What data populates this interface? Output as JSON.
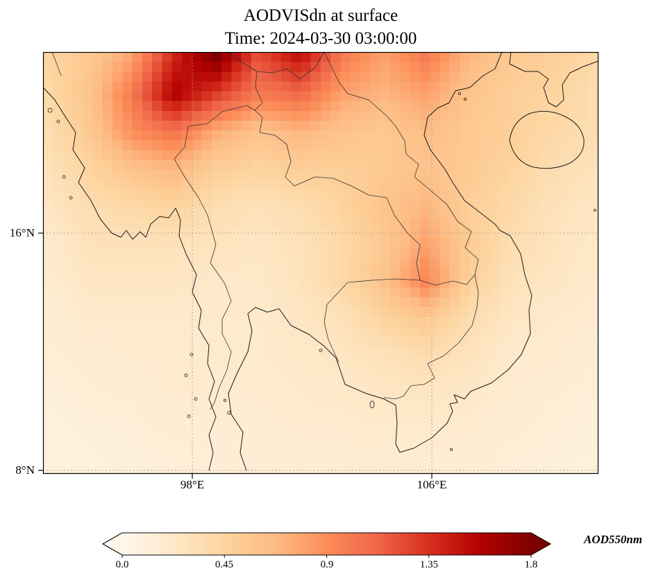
{
  "title": {
    "line1": "AODVISdn at surface",
    "line2": "Time: 2024-03-30 03:00:00"
  },
  "axes": {
    "x_ticks": [
      {
        "label": "98°E",
        "lon": 98
      },
      {
        "label": "106°E",
        "lon": 106
      }
    ],
    "y_ticks": [
      {
        "label": "16°N",
        "lat": 16
      },
      {
        "label": "8°N",
        "lat": 8
      }
    ]
  },
  "colorbar": {
    "label": "AOD550nm",
    "tick_labels": [
      "0.0",
      "0.45",
      "0.9",
      "1.35",
      "1.8"
    ],
    "tick_values": [
      0.0,
      0.45,
      0.9,
      1.35,
      1.8
    ],
    "vmin": 0.0,
    "vmax": 1.8,
    "extend": "both",
    "colormap": "OrRd",
    "colormap_stops": [
      "#fff7ec",
      "#fee8c8",
      "#fdd49e",
      "#fdbb84",
      "#fc8d59",
      "#ef6548",
      "#d7301f",
      "#b30000",
      "#7f0000"
    ]
  },
  "chart_data": {
    "type": "heatmap",
    "title": "AODVISdn at surface",
    "subtitle": "Time: 2024-03-30 03:00:00",
    "variable": "AOD550nm",
    "time": "2024-03-30 03:00:00",
    "lon_min": 93.0,
    "lon_max": 111.5,
    "lat_min": 7.9,
    "lat_max": 22.1,
    "gridline_lons": [
      98,
      106
    ],
    "gridline_lats": [
      16,
      8
    ],
    "vmin": 0.0,
    "vmax": 1.8,
    "grid_lon": [
      93.5,
      94.8,
      96.2,
      97.5,
      98.9,
      100.2,
      101.6,
      102.9,
      104.3,
      105.6,
      107.0,
      108.3,
      109.7,
      111.0
    ],
    "grid_lat": [
      21.6,
      20.4,
      19.2,
      18.0,
      16.8,
      15.5,
      14.3,
      13.1,
      11.9,
      10.7,
      9.4,
      8.2
    ],
    "values": [
      [
        0.45,
        0.55,
        0.8,
        1.4,
        1.8,
        1.2,
        1.5,
        1.0,
        0.8,
        1.0,
        0.7,
        0.55,
        0.5,
        0.4
      ],
      [
        0.4,
        0.6,
        1.0,
        1.6,
        1.3,
        1.0,
        1.1,
        0.8,
        0.7,
        0.8,
        0.6,
        0.5,
        0.45,
        0.35
      ],
      [
        0.35,
        0.55,
        0.9,
        1.05,
        0.75,
        0.6,
        0.7,
        0.6,
        0.55,
        0.65,
        0.55,
        0.5,
        0.4,
        0.35
      ],
      [
        0.3,
        0.45,
        0.6,
        0.68,
        0.5,
        0.45,
        0.5,
        0.5,
        0.55,
        0.6,
        0.55,
        0.45,
        0.35,
        0.3
      ],
      [
        0.25,
        0.35,
        0.4,
        0.45,
        0.35,
        0.3,
        0.35,
        0.45,
        0.6,
        0.7,
        0.5,
        0.4,
        0.3,
        0.25
      ],
      [
        0.2,
        0.3,
        0.3,
        0.3,
        0.28,
        0.25,
        0.3,
        0.4,
        0.55,
        0.8,
        0.55,
        0.35,
        0.28,
        0.22
      ],
      [
        0.18,
        0.25,
        0.25,
        0.25,
        0.22,
        0.22,
        0.28,
        0.4,
        0.6,
        0.95,
        0.5,
        0.3,
        0.25,
        0.2
      ],
      [
        0.15,
        0.2,
        0.2,
        0.2,
        0.2,
        0.2,
        0.25,
        0.3,
        0.45,
        0.55,
        0.35,
        0.25,
        0.2,
        0.18
      ],
      [
        0.14,
        0.16,
        0.18,
        0.2,
        0.2,
        0.2,
        0.22,
        0.25,
        0.3,
        0.35,
        0.28,
        0.2,
        0.18,
        0.15
      ],
      [
        0.12,
        0.14,
        0.15,
        0.18,
        0.18,
        0.18,
        0.2,
        0.22,
        0.25,
        0.25,
        0.22,
        0.18,
        0.15,
        0.13
      ],
      [
        0.1,
        0.12,
        0.13,
        0.15,
        0.15,
        0.16,
        0.18,
        0.18,
        0.2,
        0.2,
        0.18,
        0.15,
        0.13,
        0.12
      ],
      [
        0.1,
        0.1,
        0.12,
        0.13,
        0.14,
        0.15,
        0.15,
        0.16,
        0.16,
        0.16,
        0.15,
        0.13,
        0.12,
        0.1
      ]
    ]
  }
}
